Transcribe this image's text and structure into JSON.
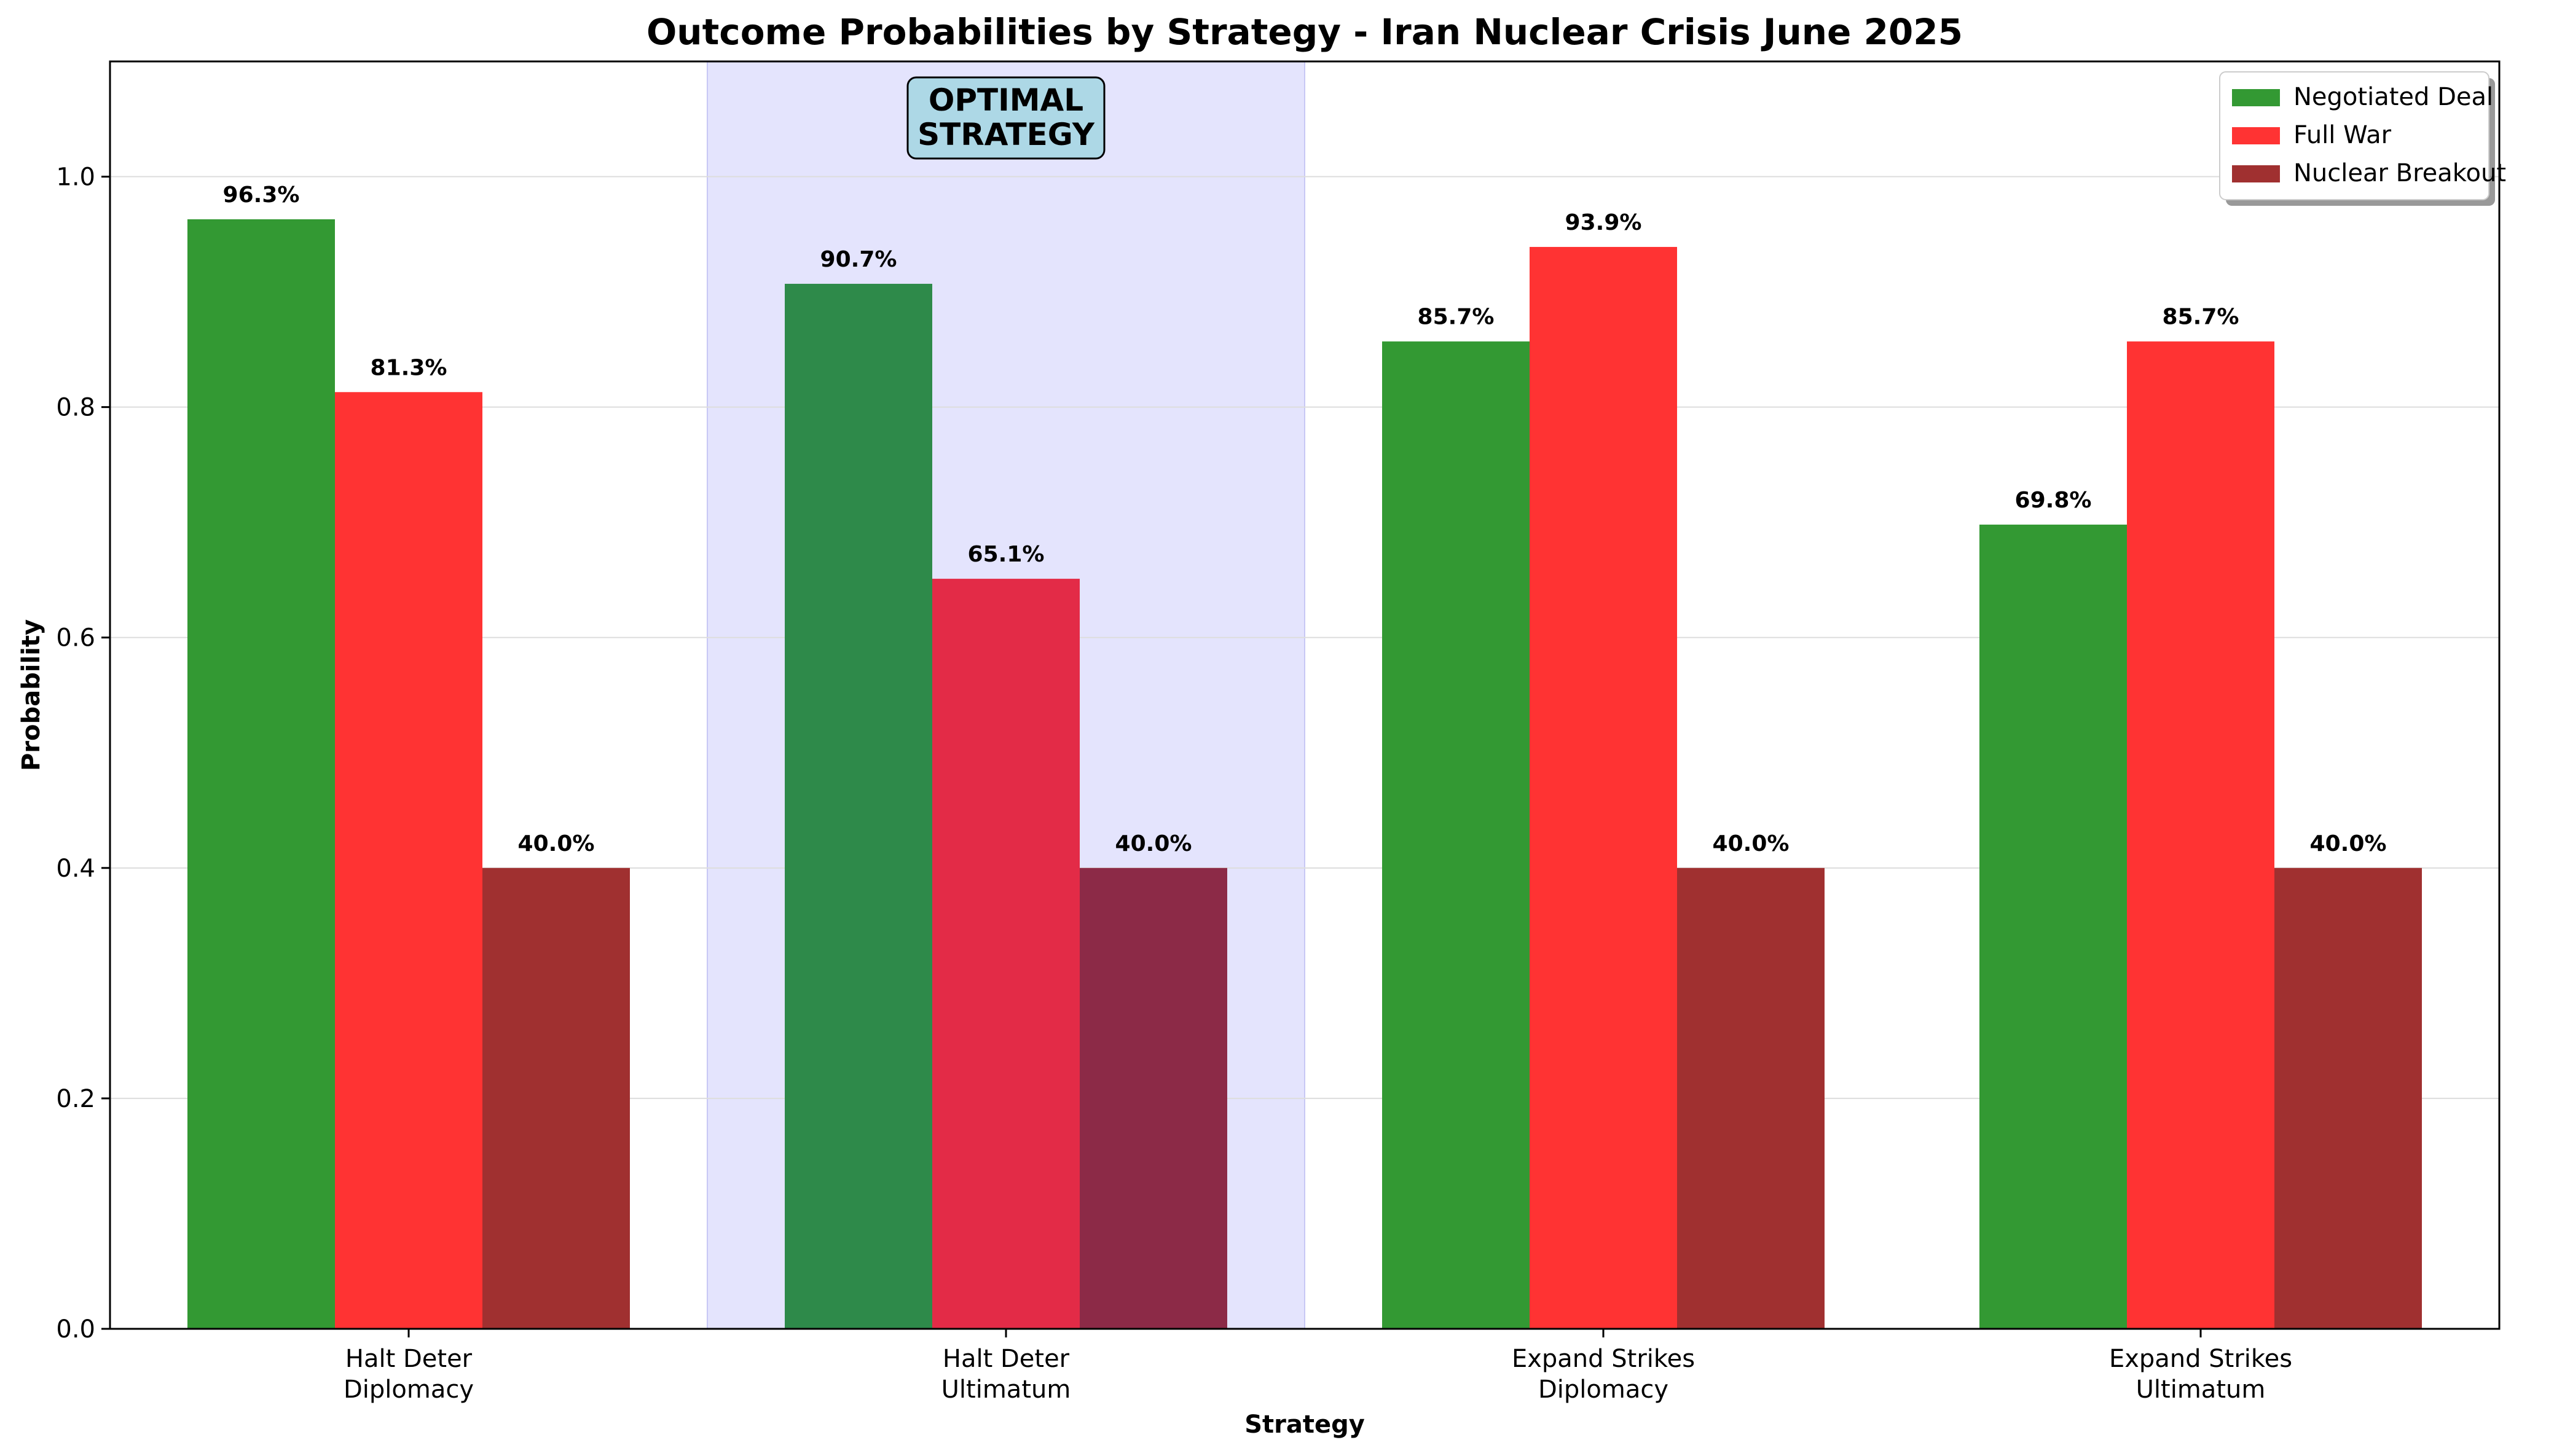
{
  "chart_data": {
    "type": "bar",
    "title": "Outcome Probabilities by Strategy - Iran Nuclear Crisis June 2025",
    "xlabel": "Strategy",
    "ylabel": "Probability",
    "ylim": [
      0,
      1.1
    ],
    "yticks": [
      "0.0",
      "0.2",
      "0.4",
      "0.6",
      "0.8",
      "1.0"
    ],
    "categories": [
      [
        "Halt Deter",
        "Diplomacy"
      ],
      [
        "Halt Deter",
        "Ultimatum"
      ],
      [
        "Expand Strikes",
        "Diplomacy"
      ],
      [
        "Expand Strikes",
        "Ultimatum"
      ]
    ],
    "series": [
      {
        "name": "Negotiated Deal",
        "color": "#339933",
        "highlight_color": "#2e8a4a",
        "values": [
          0.963,
          0.907,
          0.857,
          0.698
        ],
        "labels": [
          "96.3%",
          "90.7%",
          "85.7%",
          "69.8%"
        ]
      },
      {
        "name": "Full War",
        "color": "#ff3333",
        "highlight_color": "#e32b47",
        "values": [
          0.813,
          0.651,
          0.939,
          0.857
        ],
        "labels": [
          "81.3%",
          "65.1%",
          "93.9%",
          "85.7%"
        ]
      },
      {
        "name": "Nuclear Breakout",
        "color": "#a03030",
        "highlight_color": "#8c2a47",
        "values": [
          0.4,
          0.4,
          0.4,
          0.4
        ],
        "labels": [
          "40.0%",
          "40.0%",
          "40.0%",
          "40.0%"
        ]
      }
    ],
    "grid": true,
    "legend_position": "top-right",
    "highlight": {
      "category_index": 1,
      "label": [
        "OPTIMAL",
        "STRATEGY"
      ],
      "band_color": "#e4e4fd",
      "box_color": "#add8e6"
    }
  }
}
